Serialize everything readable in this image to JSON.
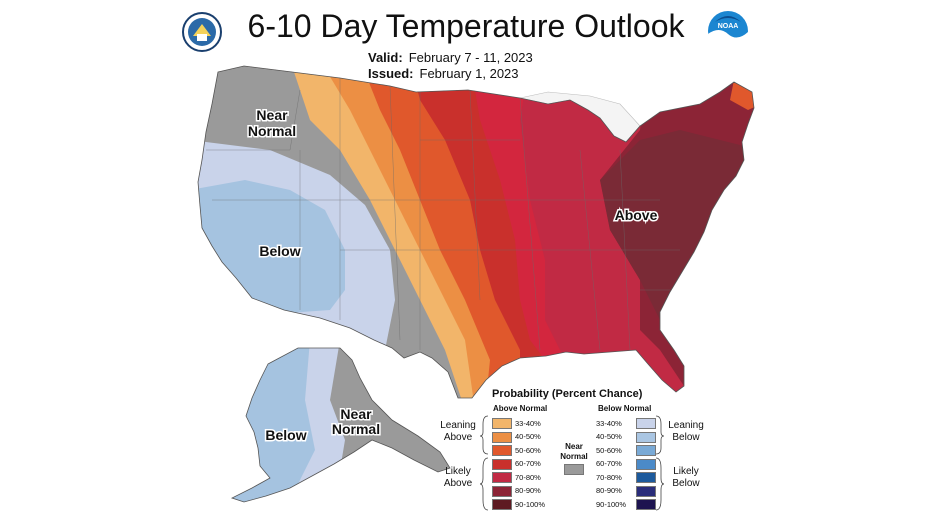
{
  "header": {
    "title": "6-10 Day Temperature Outlook",
    "valid_label": "Valid:",
    "valid_value": "February 7 - 11, 2023",
    "issued_label": "Issued:",
    "issued_value": "February 1, 2023"
  },
  "logos": {
    "left_icon": "commerce-seal-icon",
    "right_icon": "noaa-logo-icon",
    "noaa_text": "NOAA"
  },
  "map_labels": {
    "near_normal_west_1": "Near",
    "near_normal_west_2": "Normal",
    "below_conus": "Below",
    "above_east": "Above",
    "below_alaska": "Below",
    "near_normal_ak_1": "Near",
    "near_normal_ak_2": "Normal"
  },
  "legend": {
    "title": "Probability (Percent Chance)",
    "above_header": "Above Normal",
    "below_header": "Below Normal",
    "near_normal_1": "Near",
    "near_normal_2": "Normal",
    "leaning_above_1": "Leaning",
    "leaning_above_2": "Above",
    "likely_above_1": "Likely",
    "likely_above_2": "Above",
    "leaning_below_1": "Leaning",
    "leaning_below_2": "Below",
    "likely_below_1": "Likely",
    "likely_below_2": "Below",
    "above_ranges": [
      "33-40%",
      "40-50%",
      "50-60%",
      "60-70%",
      "70-80%",
      "80-90%",
      "90-100%"
    ],
    "below_ranges": [
      "33-40%",
      "40-50%",
      "50-60%",
      "60-70%",
      "70-80%",
      "80-90%",
      "90-100%"
    ],
    "above_colors": [
      "#f2b56a",
      "#ec8f44",
      "#e0582c",
      "#c9302c",
      "#c12a44",
      "#8c2436",
      "#5e1a22"
    ],
    "below_colors": [
      "#c9d3ea",
      "#aac6e3",
      "#7aaad6",
      "#4b8ac8",
      "#1d5a9c",
      "#2a2d7a",
      "#1e1450"
    ],
    "near_normal_color": "#9a9a9a"
  }
}
